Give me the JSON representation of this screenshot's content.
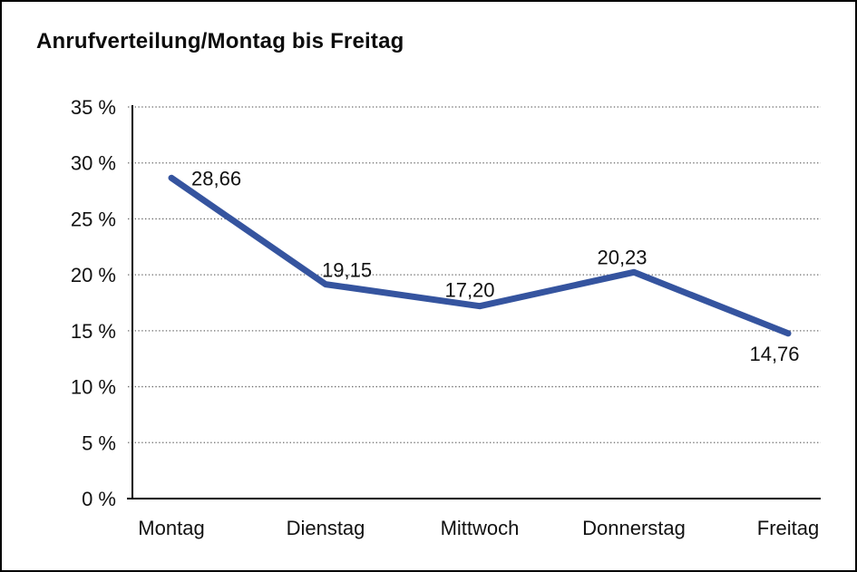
{
  "page": {
    "background_color": "#ffffff",
    "frame_border_color": "#000000"
  },
  "chart_data": {
    "type": "line",
    "title": "Anrufverteilung/Montag bis Freitag",
    "categories": [
      "Montag",
      "Dienstag",
      "Mittwoch",
      "Donnerstag",
      "Freitag"
    ],
    "series": [
      {
        "name": "Anrufverteilung",
        "values": [
          28.66,
          19.15,
          17.2,
          20.23,
          14.76
        ]
      }
    ],
    "data_labels": [
      "28,66",
      "19,15",
      "17,20",
      "20,23",
      "14,76"
    ],
    "xlabel": "",
    "ylabel": "",
    "ylim": [
      0,
      35
    ],
    "y_step": 5,
    "y_tick_labels": [
      "0 %",
      "5 %",
      "10 %",
      "15 %",
      "20 %",
      "25 %",
      "30 %",
      "35 %"
    ],
    "grid": "horizontal-dotted",
    "legend_position": "none",
    "line_color": "#35549f",
    "axis_color": "#000000",
    "gridline_color": "#6e6e6e",
    "text_color": "#111111"
  }
}
